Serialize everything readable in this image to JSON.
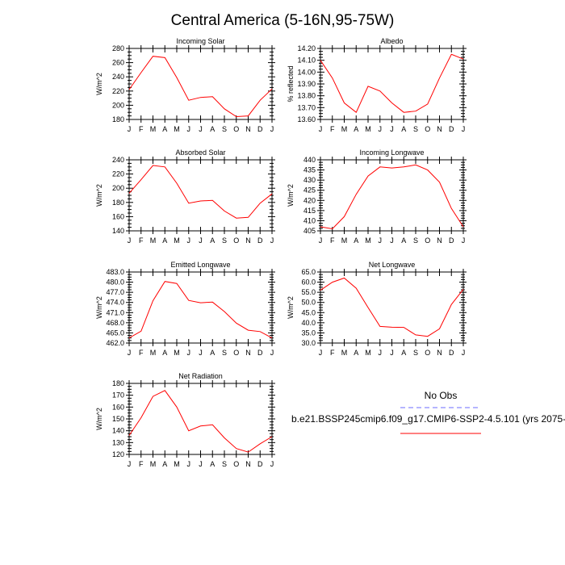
{
  "title": "Central America (5-16N,95-75W)",
  "months": [
    "J",
    "F",
    "M",
    "A",
    "M",
    "J",
    "J",
    "A",
    "S",
    "O",
    "N",
    "D",
    "J"
  ],
  "colors": {
    "model": "#ff0000",
    "obs": "#6b6bff",
    "axis": "#000000"
  },
  "chart_data": [
    {
      "type": "line",
      "title": "Incoming Solar",
      "ylabel": "W/m^2",
      "ylim": [
        180,
        280
      ],
      "yticks": [
        180,
        200,
        220,
        240,
        260,
        280
      ],
      "yticklabels": [
        "180",
        "200",
        "220",
        "240",
        "260",
        "280"
      ],
      "series": [
        {
          "name": "b.e21.BSSP245cmip6.f09_g17.CMIP6-SSP2-4.5.101",
          "values": [
            222,
            246,
            269,
            267,
            239,
            207,
            211,
            212,
            195,
            184,
            185,
            207,
            223
          ]
        }
      ]
    },
    {
      "type": "line",
      "title": "Albedo",
      "ylabel": "% reflected",
      "ylim": [
        13.6,
        14.2
      ],
      "yticks": [
        13.6,
        13.7,
        13.8,
        13.9,
        14.0,
        14.1,
        14.2
      ],
      "yticklabels": [
        "13.60",
        "13.70",
        "13.80",
        "13.90",
        "14.00",
        "14.10",
        "14.20"
      ],
      "series": [
        {
          "name": "b.e21.BSSP245cmip6.f09_g17.CMIP6-SSP2-4.5.101",
          "values": [
            14.1,
            13.95,
            13.74,
            13.66,
            13.88,
            13.84,
            13.74,
            13.66,
            13.67,
            13.73,
            13.95,
            14.15,
            14.11
          ]
        }
      ]
    },
    {
      "type": "line",
      "title": "Absorbed Solar",
      "ylabel": "W/m^2",
      "ylim": [
        140,
        240
      ],
      "yticks": [
        140,
        160,
        180,
        200,
        220,
        240
      ],
      "yticklabels": [
        "140",
        "160",
        "180",
        "200",
        "220",
        "240"
      ],
      "series": [
        {
          "name": "b.e21.BSSP245cmip6.f09_g17.CMIP6-SSP2-4.5.101",
          "values": [
            193,
            212,
            232,
            230,
            207,
            179,
            182,
            183,
            168,
            158,
            159,
            179,
            192
          ]
        }
      ]
    },
    {
      "type": "line",
      "title": "Incoming Longwave",
      "ylabel": "W/m^2",
      "ylim": [
        405,
        440
      ],
      "yticks": [
        405,
        410,
        415,
        420,
        425,
        430,
        435,
        440
      ],
      "yticklabels": [
        "405",
        "410",
        "415",
        "420",
        "425",
        "430",
        "435",
        "440"
      ],
      "series": [
        {
          "name": "b.e21.BSSP245cmip6.f09_g17.CMIP6-SSP2-4.5.101",
          "values": [
            407,
            406,
            412,
            423,
            432,
            436.5,
            436,
            436.5,
            437.5,
            435,
            429,
            416,
            407
          ]
        }
      ]
    },
    {
      "type": "line",
      "title": "Emitted Longwave",
      "ylabel": "W/m^2",
      "ylim": [
        462,
        483
      ],
      "yticks": [
        462,
        465,
        468,
        471,
        474,
        477,
        480,
        483
      ],
      "yticklabels": [
        "462.0",
        "465.0",
        "468.0",
        "471.0",
        "474.0",
        "477.0",
        "480.0",
        "483.0"
      ],
      "series": [
        {
          "name": "b.e21.BSSP245cmip6.f09_g17.CMIP6-SSP2-4.5.101",
          "values": [
            463.5,
            465.5,
            474.5,
            480.2,
            479.6,
            474.6,
            473.9,
            474.1,
            471.3,
            467.9,
            465.8,
            465.4,
            463.5
          ]
        }
      ]
    },
    {
      "type": "line",
      "title": "Net Longwave",
      "ylabel": "W/m^2",
      "ylim": [
        30,
        65
      ],
      "yticks": [
        30,
        35,
        40,
        45,
        50,
        55,
        60,
        65
      ],
      "yticklabels": [
        "30.0",
        "35.0",
        "40.0",
        "45.0",
        "50.0",
        "55.0",
        "60.0",
        "65.0"
      ],
      "series": [
        {
          "name": "b.e21.BSSP245cmip6.f09_g17.CMIP6-SSP2-4.5.101",
          "values": [
            56,
            60,
            62,
            57,
            47.5,
            38.2,
            37.8,
            37.7,
            34,
            33.3,
            37,
            49,
            56.5
          ]
        }
      ]
    },
    {
      "type": "line",
      "title": "Net Radiation",
      "ylabel": "W/m^2",
      "ylim": [
        120,
        180
      ],
      "yticks": [
        120,
        130,
        140,
        150,
        160,
        170,
        180
      ],
      "yticklabels": [
        "120",
        "130",
        "140",
        "150",
        "160",
        "170",
        "180"
      ],
      "series": [
        {
          "name": "b.e21.BSSP245cmip6.f09_g17.CMIP6-SSP2-4.5.101",
          "values": [
            136,
            151,
            169,
            174,
            160,
            140,
            144,
            145,
            134,
            125,
            122,
            129,
            135
          ]
        }
      ]
    }
  ],
  "legend": {
    "obs_label": "No Obs",
    "model_label": "b.e21.BSSP245cmip6.f09_g17.CMIP6-SSP2-4.5.101 (yrs 2075-"
  }
}
